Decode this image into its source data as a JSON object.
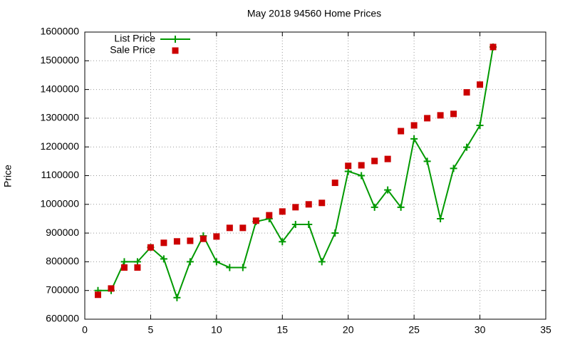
{
  "chart_data": {
    "type": "line",
    "title": "May 2018 94560 Home Prices",
    "y_label": "Price",
    "x": [
      1,
      2,
      3,
      4,
      5,
      6,
      7,
      8,
      9,
      10,
      11,
      12,
      13,
      14,
      15,
      16,
      17,
      18,
      19,
      20,
      21,
      22,
      23,
      24,
      25,
      26,
      27,
      28,
      29,
      30,
      31
    ],
    "series": [
      {
        "name": "List Price",
        "color": "#009900",
        "line": true,
        "marker": "plus",
        "values": [
          700000,
          700000,
          800000,
          800000,
          850000,
          810000,
          675000,
          800000,
          890000,
          800000,
          780000,
          780000,
          940000,
          950000,
          870000,
          930000,
          930000,
          800000,
          900000,
          1115000,
          1100000,
          990000,
          1050000,
          990000,
          1228000,
          1150000,
          950000,
          1125000,
          1199000,
          1275000,
          1548000
        ]
      },
      {
        "name": "Sale Price",
        "color": "#cc0000",
        "line": false,
        "marker": "square",
        "values": [
          685000,
          707000,
          780000,
          780000,
          850000,
          866000,
          871000,
          873000,
          880000,
          888000,
          918000,
          918000,
          943000,
          962000,
          975000,
          990000,
          1000000,
          1005000,
          1075000,
          1134000,
          1136000,
          1151000,
          1158000,
          1255000,
          1275000,
          1300000,
          1310000,
          1315000,
          1390000,
          1417000,
          1548000
        ]
      }
    ],
    "xlim": [
      0,
      35
    ],
    "xticks": [
      0,
      5,
      10,
      15,
      20,
      25,
      30,
      35
    ],
    "ylim": [
      600000,
      1600000
    ],
    "yticks": [
      600000,
      700000,
      800000,
      900000,
      1000000,
      1100000,
      1200000,
      1300000,
      1400000,
      1500000,
      1600000
    ],
    "grid": true,
    "legend": "top-left"
  }
}
